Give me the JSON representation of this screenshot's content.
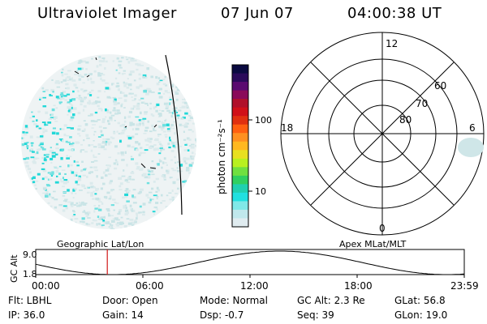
{
  "header": {
    "title": "Ultraviolet Imager",
    "date": "07 Jun 07",
    "time": "04:00:38 UT"
  },
  "colorbar": {
    "unit_label": "photon cm⁻²s⁻¹",
    "ticks": [
      "100",
      "10"
    ],
    "colors": [
      "#0a0a40",
      "#2a0a5a",
      "#5a0a70",
      "#8a0a5a",
      "#b0102a",
      "#d01018",
      "#e03010",
      "#ff6010",
      "#ff9020",
      "#ffb820",
      "#e8e020",
      "#b8f020",
      "#70e040",
      "#30d060",
      "#20d0b0",
      "#20e0e0",
      "#80e8e8",
      "#c0e8ec",
      "#e0ecf0"
    ]
  },
  "polar": {
    "clock_labels": [
      "12",
      "18",
      "6",
      "0"
    ],
    "lat_labels": [
      "60",
      "70",
      "80"
    ]
  },
  "timeline": {
    "left_label": "Geographic Lat/Lon",
    "right_label": "Apex MLat/MLT",
    "axis_label": "GC Alt",
    "y_ticks": [
      "9.0",
      "1.8"
    ],
    "x_ticks": [
      "00:00",
      "06:00",
      "12:00",
      "18:00",
      "23:59"
    ],
    "current_time_fraction": 0.167
  },
  "info": {
    "filter": "Flt: LBHL",
    "door": "Door: Open",
    "mode": "Mode: Normal",
    "gc_alt": "GC Alt: 2.3 Re",
    "glat": "GLat:  56.8",
    "ip": "IP: 36.0",
    "gain": "Gain: 14",
    "dsp": "Dsp:   -0.7",
    "seq": "Seq: 39",
    "glon": "GLon:  19.0"
  }
}
